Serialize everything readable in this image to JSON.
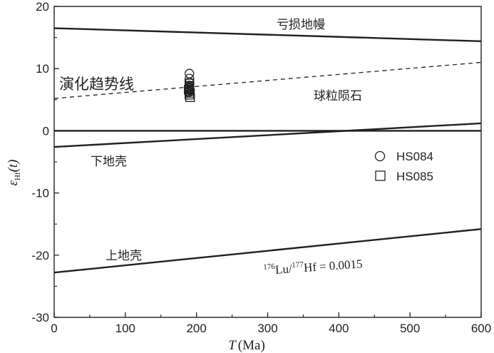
{
  "chart_data": {
    "type": "scatter",
    "title": "",
    "xlabel": {
      "var": "T",
      "unit": "(Ma)"
    },
    "ylabel": {
      "var": "εHf(t)",
      "main": "ε",
      "sub": "Hf",
      "rest": "(t)"
    },
    "xlim": [
      0,
      600
    ],
    "ylim": [
      -30,
      20
    ],
    "x_ticks": [
      0,
      100,
      200,
      300,
      400,
      500,
      600
    ],
    "y_ticks": [
      -30,
      -20,
      -10,
      0,
      10,
      20
    ],
    "grid": false,
    "legend_position": "right",
    "reference_lines": [
      {
        "name": "亏损地幔",
        "points": [
          [
            0,
            16.5
          ],
          [
            600,
            14.4
          ]
        ],
        "style": "solid"
      },
      {
        "name": "演化趋势线",
        "points": [
          [
            0,
            5.2
          ],
          [
            600,
            11.0
          ]
        ],
        "style": "dashed"
      },
      {
        "name": "球粒陨石",
        "points": [
          [
            0,
            0
          ],
          [
            600,
            0
          ]
        ],
        "style": "solid"
      },
      {
        "name": "下地壳",
        "points": [
          [
            0,
            -2.6
          ],
          [
            600,
            1.2
          ]
        ],
        "style": "solid"
      },
      {
        "name": "上地壳",
        "points": [
          [
            0,
            -22.8
          ],
          [
            600,
            -15.8
          ]
        ],
        "style": "solid"
      }
    ],
    "annotation": {
      "sup1": "176",
      "lu": "Lu/",
      "sup2": "177",
      "hf": "Hf",
      "eq": "= 0.0015"
    },
    "series": [
      {
        "name": "HS084",
        "marker": "circle",
        "x": [
          190,
          190,
          190,
          190,
          190,
          191,
          189,
          190
        ],
        "y": [
          9.2,
          8.4,
          7.8,
          7.3,
          6.9,
          6.5,
          6.2,
          7.0
        ]
      },
      {
        "name": "HS085",
        "marker": "square",
        "x": [
          190,
          190,
          190,
          190,
          190,
          190,
          190,
          191,
          189
        ],
        "y": [
          7.6,
          7.2,
          6.9,
          6.7,
          6.4,
          6.1,
          5.8,
          5.4,
          6.6
        ]
      }
    ]
  },
  "colors": {
    "line": "#231f20",
    "marker": "#231f20"
  }
}
